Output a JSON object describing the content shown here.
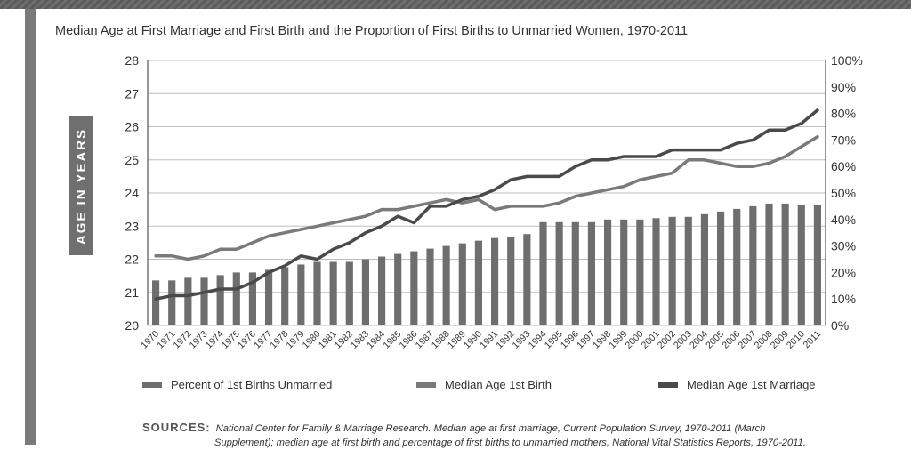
{
  "title": "Median Age at First Marriage and First Birth and the Proportion of First Births to Unmarried Women, 1970-2011",
  "y_tag": "AGE IN YEARS",
  "sources_label": "SOURCES:",
  "sources_line1": "National Center for Family & Marriage Research. Median age at first marriage, Current Population Survey, 1970-2011 (March",
  "sources_line2": "Supplement); median age at first birth and percentage of first births to unmarried mothers, National Vital Statistics Reports, 1970-2011.",
  "colors": {
    "bars": "#6e6e6e",
    "birth": "#7a7a7a",
    "marriage": "#4a4a4a",
    "grid": "#bdbdbd"
  },
  "chart_data": {
    "type": "bar+line",
    "categories": [
      "1970",
      "1971",
      "1972",
      "1973",
      "1974",
      "1975",
      "1976",
      "1977",
      "1978",
      "1979",
      "1980",
      "1981",
      "1982",
      "1983",
      "1984",
      "1985",
      "1986",
      "1987",
      "1988",
      "1989",
      "1990",
      "1991",
      "1992",
      "1993",
      "1994",
      "1995",
      "1996",
      "1997",
      "1998",
      "1999",
      "2000",
      "2001",
      "2002",
      "2003",
      "2004",
      "2005",
      "2006",
      "2007",
      "2008",
      "2009",
      "2010",
      "2011"
    ],
    "left_axis": {
      "min": 20,
      "max": 28,
      "ticks": [
        "20",
        "21",
        "22",
        "23",
        "24",
        "25",
        "26",
        "27",
        "28"
      ]
    },
    "right_axis": {
      "min": 0,
      "max": 100,
      "ticks": [
        "0%",
        "10%",
        "20%",
        "30%",
        "40%",
        "50%",
        "60%",
        "70%",
        "80%",
        "90%",
        "100%"
      ]
    },
    "grid": true,
    "legend_position": "bottom",
    "series": [
      {
        "name": "Percent of 1st Births Unmarried",
        "type": "bar",
        "axis": "right",
        "values": [
          17,
          17,
          18,
          18,
          19,
          20,
          20,
          21,
          22,
          23,
          24,
          24,
          24,
          25,
          26,
          27,
          28,
          29,
          30,
          31,
          32,
          33,
          33.5,
          34.5,
          39,
          39,
          39,
          39,
          40,
          40,
          40,
          40.5,
          41,
          41,
          42,
          43,
          44,
          45,
          46,
          46,
          45.5,
          45.5
        ]
      },
      {
        "name": "Median Age 1st Birth",
        "type": "line",
        "axis": "left",
        "values": [
          22.1,
          22.1,
          22.0,
          22.1,
          22.3,
          22.3,
          22.5,
          22.7,
          22.8,
          22.9,
          23.0,
          23.1,
          23.2,
          23.3,
          23.5,
          23.5,
          23.6,
          23.7,
          23.8,
          23.7,
          23.8,
          23.5,
          23.6,
          23.6,
          23.6,
          23.7,
          23.9,
          24.0,
          24.1,
          24.2,
          24.4,
          24.5,
          24.6,
          25.0,
          25.0,
          24.9,
          24.8,
          24.8,
          24.9,
          25.1,
          25.4,
          25.7
        ]
      },
      {
        "name": "Median Age 1st Marriage",
        "type": "line",
        "axis": "left",
        "values": [
          20.8,
          20.9,
          20.9,
          21.0,
          21.1,
          21.1,
          21.3,
          21.6,
          21.8,
          22.1,
          22.0,
          22.3,
          22.5,
          22.8,
          23.0,
          23.3,
          23.1,
          23.6,
          23.6,
          23.8,
          23.9,
          24.1,
          24.4,
          24.5,
          24.5,
          24.5,
          24.8,
          25.0,
          25.0,
          25.1,
          25.1,
          25.1,
          25.3,
          25.3,
          25.3,
          25.3,
          25.5,
          25.6,
          25.9,
          25.9,
          26.1,
          26.5
        ]
      }
    ]
  }
}
